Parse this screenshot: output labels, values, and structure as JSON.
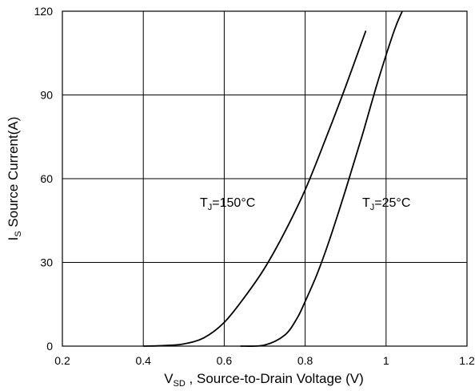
{
  "chart_data": {
    "type": "line",
    "xlabel": {
      "main": "V",
      "sub": "SD",
      "rest": " , Source-to-Drain Voltage (V)"
    },
    "ylabel": {
      "main": "I",
      "sub": "S",
      "rest": " Source Current(A)"
    },
    "xlim": [
      0.2,
      1.2
    ],
    "ylim": [
      0,
      120
    ],
    "xticks": [
      "0.2",
      "0.4",
      "0.6",
      "0.8",
      "1",
      "1.2"
    ],
    "yticks": [
      "0",
      "30",
      "60",
      "90",
      "120"
    ],
    "grid": true,
    "series": [
      {
        "label": {
          "main": "T",
          "sub": "J",
          "rest": "=150°C"
        },
        "x": [
          0.4,
          0.45,
          0.5,
          0.55,
          0.6,
          0.65,
          0.7,
          0.75,
          0.8,
          0.85,
          0.9,
          0.95
        ],
        "y": [
          0,
          0.2,
          0.8,
          3,
          8.5,
          17.5,
          28,
          41,
          56,
          74,
          93,
          113
        ]
      },
      {
        "label": {
          "main": "T",
          "sub": "J",
          "rest": "=25°C"
        },
        "x": [
          0.64,
          0.7,
          0.75,
          0.78,
          0.8,
          0.83,
          0.86,
          0.9,
          0.94,
          0.98,
          1.02,
          1.04
        ],
        "y": [
          0,
          0.4,
          4,
          10,
          16,
          26,
          38,
          56,
          75,
          95,
          113,
          120
        ]
      }
    ],
    "colors": {
      "line": "#000000",
      "grid": "#000000",
      "background": "#ffffff"
    }
  }
}
